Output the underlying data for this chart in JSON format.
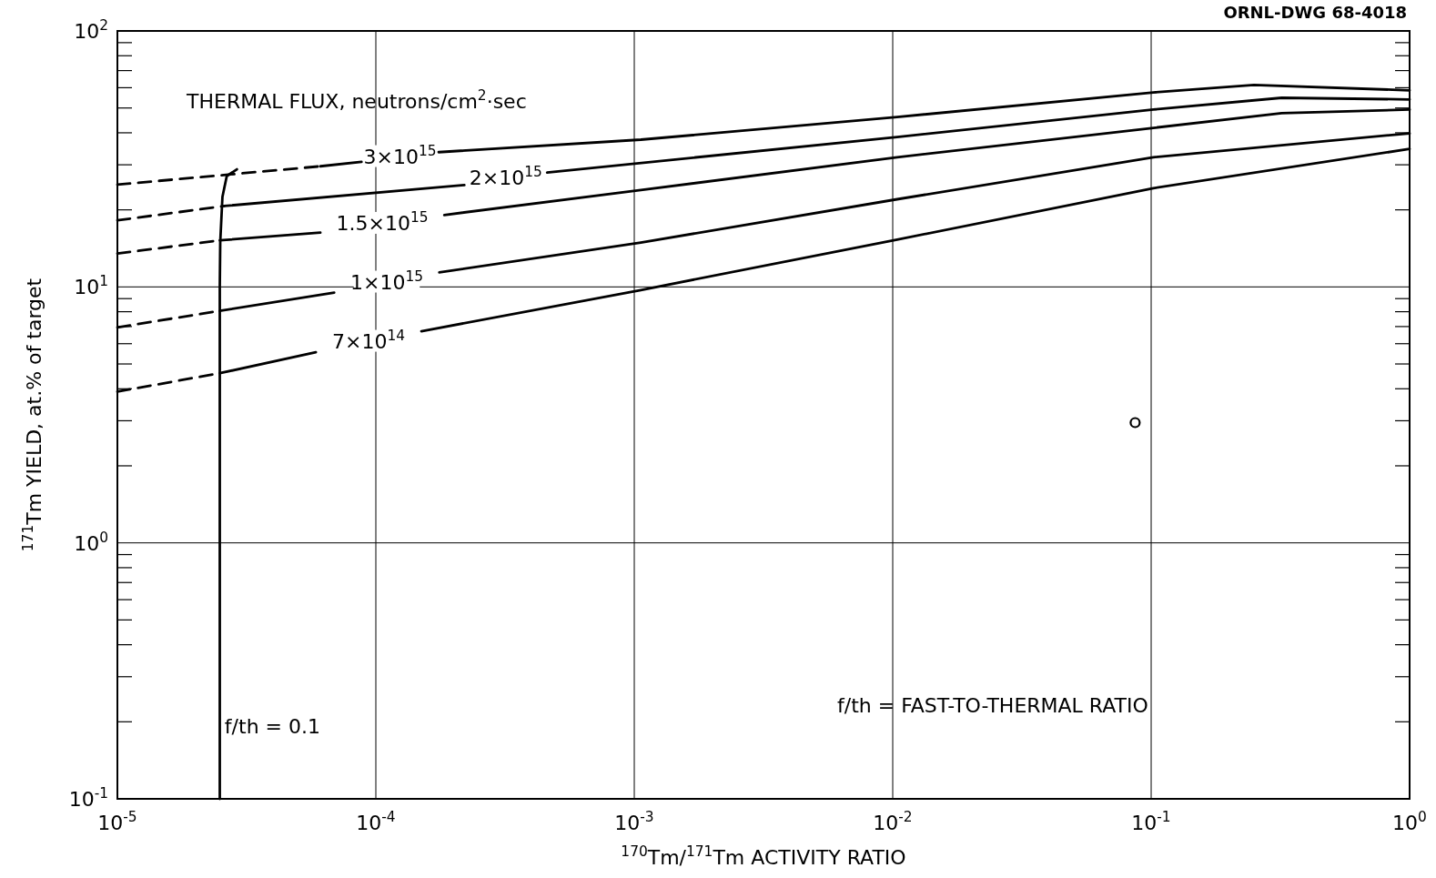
{
  "chart_data": {
    "type": "line",
    "xlabel": "$^{170}$Tm/$^{171}$Tm ACTIVITY RATIO",
    "ylabel": "$^{171}$Tm YIELD, at.% of target",
    "log": "xy",
    "grid": true,
    "legend": false,
    "xlim": [
      1e-05,
      1
    ],
    "ylim": [
      0.1,
      100
    ],
    "xticks": [
      {
        "value": 1e-05,
        "label": "10$^{-5}$"
      },
      {
        "value": 0.0001,
        "label": "10$^{-4}$"
      },
      {
        "value": 0.001,
        "label": "10$^{-3}$"
      },
      {
        "value": 0.01,
        "label": "10$^{-2}$"
      },
      {
        "value": 0.1,
        "label": "10$^{-1}$"
      },
      {
        "value": 1,
        "label": "10$^{0}$"
      }
    ],
    "yticks": [
      {
        "value": 0.1,
        "label": "10$^{-1}$"
      },
      {
        "value": 0.2,
        "label": null
      },
      {
        "value": 0.3,
        "label": null
      },
      {
        "value": 0.4,
        "label": null
      },
      {
        "value": 0.5,
        "label": null
      },
      {
        "value": 0.6,
        "label": null
      },
      {
        "value": 0.7,
        "label": null
      },
      {
        "value": 0.8,
        "label": null
      },
      {
        "value": 0.9,
        "label": null
      },
      {
        "value": 1,
        "label": "10$^{0}$"
      },
      {
        "value": 2,
        "label": null
      },
      {
        "value": 3,
        "label": null
      },
      {
        "value": 4,
        "label": null
      },
      {
        "value": 5,
        "label": null
      },
      {
        "value": 6,
        "label": null
      },
      {
        "value": 7,
        "label": null
      },
      {
        "value": 8,
        "label": null
      },
      {
        "value": 9,
        "label": null
      },
      {
        "value": 10,
        "label": "10$^{1}$"
      },
      {
        "value": 20,
        "label": null
      },
      {
        "value": 30,
        "label": null
      },
      {
        "value": 40,
        "label": null
      },
      {
        "value": 50,
        "label": null
      },
      {
        "value": 60,
        "label": null
      },
      {
        "value": 70,
        "label": null
      },
      {
        "value": 80,
        "label": null
      },
      {
        "value": 90,
        "label": null
      },
      {
        "value": 100,
        "label": "10$^{2}$"
      }
    ],
    "annotations": [
      "ORNL-DWG 68-4018",
      "THERMAL FLUX, neutrons/cm$^{2}$·sec",
      "f/th = FAST-TO-THERMAL RATIO",
      {
        "text": "f/th = 0.1",
        "x": 2.6e-05,
        "y": 0.18
      }
    ],
    "series": [
      {
        "line_style": "dashed",
        "color": "#000000",
        "x": [
          1e-05,
          6.1e-05
        ],
        "values": [
          25.1,
          29.6
        ]
      },
      {
        "line_style": "solid",
        "name": "3×10$^{15}$",
        "color": "#000000",
        "x": [
          6.1e-05,
          8.8e-05,
          0.000125,
          0.000175,
          0.00106,
          0.0104,
          0.102,
          0.25,
          1
        ],
        "values": [
          29.6,
          30.8,
          null,
          33.6,
          37.6,
          46.1,
          57.5,
          61.5,
          58.6
        ]
      },
      {
        "line_style": "dashed",
        "color": "#000000",
        "x": [
          1e-05,
          2.59e-05
        ],
        "values": [
          18.2,
          20.7
        ]
      },
      {
        "line_style": "solid",
        "name": "2×10$^{15}$",
        "color": "#000000",
        "x": [
          2.59e-05,
          0.00022,
          0.00032,
          0.00046,
          0.0104,
          0.102,
          0.32,
          1
        ],
        "values": [
          20.7,
          25.0,
          null,
          28.0,
          38.5,
          49.3,
          54.8,
          54.0
        ]
      },
      {
        "line_style": "dashed",
        "color": "#000000",
        "x": [
          1e-05,
          2.49e-05
        ],
        "values": [
          13.5,
          15.2
        ]
      },
      {
        "line_style": "solid",
        "name": "1.5×10$^{15}$",
        "color": "#000000",
        "x": [
          2.49e-05,
          6.1e-05,
          0.00011,
          0.000184,
          0.00106,
          0.0104,
          0.102,
          0.32,
          1
        ],
        "values": [
          15.2,
          16.3,
          null,
          19.1,
          23.9,
          32.1,
          41.8,
          47.7,
          49.3
        ]
      },
      {
        "line_style": "dashed",
        "color": "#000000",
        "x": [
          1e-05,
          2.49e-05
        ],
        "values": [
          6.95,
          8.06
        ]
      },
      {
        "line_style": "solid",
        "name": "1×10$^{15}$",
        "color": "#000000",
        "x": [
          2.49e-05,
          6.9e-05,
          0.00012,
          0.000176,
          0.00106,
          0.0104,
          0.102,
          1
        ],
        "values": [
          8.06,
          9.49,
          null,
          11.4,
          14.9,
          22.0,
          32.1,
          39.8
        ]
      },
      {
        "line_style": "dashed",
        "color": "#000000",
        "x": [
          1e-05,
          2.49e-05
        ],
        "values": [
          3.9,
          4.6
        ]
      },
      {
        "line_style": "solid",
        "name": "7×10$^{14}$",
        "color": "#000000",
        "x": [
          2.49e-05,
          5.86e-05,
          9e-05,
          0.00015,
          0.00106,
          0.0104,
          0.102,
          1
        ],
        "values": [
          4.6,
          5.56,
          null,
          6.71,
          9.72,
          15.3,
          24.3,
          34.6
        ]
      },
      {
        "line_style": "solid",
        "color": "#000000",
        "x": [
          2.49e-05,
          2.49e-05,
          2.5e-05,
          2.55e-05,
          2.65e-05,
          2.9e-05
        ],
        "values": [
          0.1,
          10,
          15,
          22.5,
          27.1,
          28.8
        ]
      },
      {
        "type": "scatter",
        "marker": "circle",
        "color": "#000000",
        "x": [
          0.0867
        ],
        "values": [
          2.95
        ]
      }
    ]
  }
}
